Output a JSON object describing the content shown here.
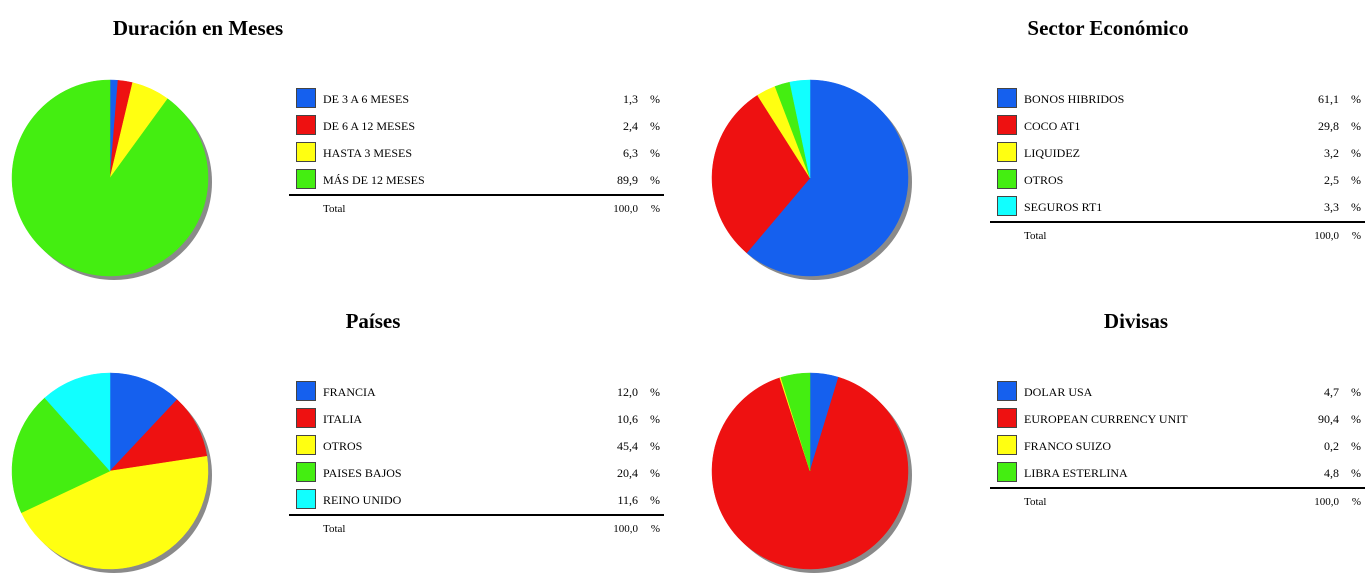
{
  "chart_data": [
    {
      "type": "pie",
      "title": "Duración en Meses",
      "categories": [
        "DE 3 A 6 MESES",
        "DE 6 A 12 MESES",
        "HASTA 3 MESES",
        "MÁS DE 12 MESES"
      ],
      "values": [
        1.3,
        2.4,
        6.3,
        89.9
      ],
      "value_labels": [
        "1,3",
        "2,4",
        "6,3",
        "89,9"
      ],
      "colors": [
        "#1560ee",
        "#ee1111",
        "#ffff11",
        "#44ee11"
      ],
      "total_label": "Total",
      "total_value": "100,0",
      "unit": "%"
    },
    {
      "type": "pie",
      "title": "Sector Económico",
      "categories": [
        "BONOS HIBRIDOS",
        "COCO AT1",
        "LIQUIDEZ",
        "OTROS",
        "SEGUROS RT1"
      ],
      "values": [
        61.1,
        29.8,
        3.2,
        2.5,
        3.3
      ],
      "value_labels": [
        "61,1",
        "29,8",
        "3,2",
        "2,5",
        "3,3"
      ],
      "colors": [
        "#1560ee",
        "#ee1111",
        "#ffff11",
        "#44ee11",
        "#11ffff"
      ],
      "total_label": "Total",
      "total_value": "100,0",
      "unit": "%"
    },
    {
      "type": "pie",
      "title": "Países",
      "categories": [
        "FRANCIA",
        "ITALIA",
        "OTROS",
        "PAISES BAJOS",
        "REINO UNIDO"
      ],
      "values": [
        12.0,
        10.6,
        45.4,
        20.4,
        11.6
      ],
      "value_labels": [
        "12,0",
        "10,6",
        "45,4",
        "20,4",
        "11,6"
      ],
      "colors": [
        "#1560ee",
        "#ee1111",
        "#ffff11",
        "#44ee11",
        "#11ffff"
      ],
      "total_label": "Total",
      "total_value": "100,0",
      "unit": "%"
    },
    {
      "type": "pie",
      "title": "Divisas",
      "categories": [
        "DOLAR USA",
        "EUROPEAN CURRENCY UNIT",
        "FRANCO SUIZO",
        "LIBRA ESTERLINA"
      ],
      "values": [
        4.7,
        90.4,
        0.2,
        4.8
      ],
      "value_labels": [
        "4,7",
        "90,4",
        "0,2",
        "4,8"
      ],
      "colors": [
        "#1560ee",
        "#ee1111",
        "#ffff11",
        "#44ee11"
      ],
      "total_label": "Total",
      "total_value": "100,0",
      "unit": "%"
    }
  ]
}
